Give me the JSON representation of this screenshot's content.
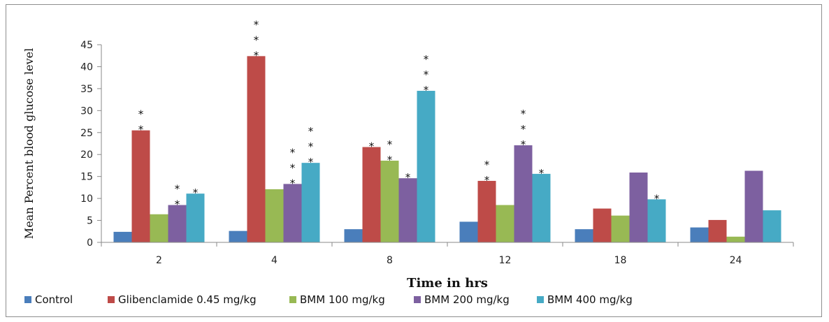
{
  "chart_data": {
    "type": "bar",
    "title": "",
    "xlabel": "Time in hrs",
    "ylabel": "Mean Percent blood glucose level",
    "categories": [
      "2",
      "4",
      "8",
      "12",
      "18",
      "24"
    ],
    "ylim": [
      0,
      45
    ],
    "yticks": [
      0,
      5,
      10,
      15,
      20,
      25,
      30,
      35,
      40,
      45
    ],
    "grid": false,
    "legend_position": "bottom",
    "significance_mark": "*",
    "series": [
      {
        "name": "Control",
        "color": "#4a7ebb",
        "values": [
          2.4,
          2.6,
          3.0,
          4.7,
          3.0,
          3.4
        ],
        "stars": [
          0,
          0,
          0,
          0,
          0,
          0
        ]
      },
      {
        "name": "Glibenclamide 0.45 mg/kg",
        "color": "#be4b48",
        "values": [
          25.5,
          42.4,
          21.7,
          14.0,
          7.7,
          5.1
        ],
        "stars": [
          2,
          3,
          1,
          2,
          0,
          0
        ]
      },
      {
        "name": "BMM 100 mg/kg",
        "color": "#98b954",
        "values": [
          6.4,
          12.1,
          18.6,
          8.5,
          6.1,
          1.3
        ],
        "stars": [
          0,
          0,
          2,
          0,
          0,
          0
        ]
      },
      {
        "name": "BMM 200 mg/kg",
        "color": "#7d60a0",
        "values": [
          8.5,
          13.3,
          14.6,
          22.1,
          15.9,
          16.3
        ],
        "stars": [
          2,
          3,
          1,
          3,
          0,
          0
        ]
      },
      {
        "name": "BMM 400 mg/kg",
        "color": "#46aac5",
        "values": [
          11.1,
          18.1,
          34.5,
          15.6,
          9.8,
          7.3
        ],
        "stars": [
          1,
          3,
          3,
          1,
          1,
          0
        ]
      }
    ]
  }
}
